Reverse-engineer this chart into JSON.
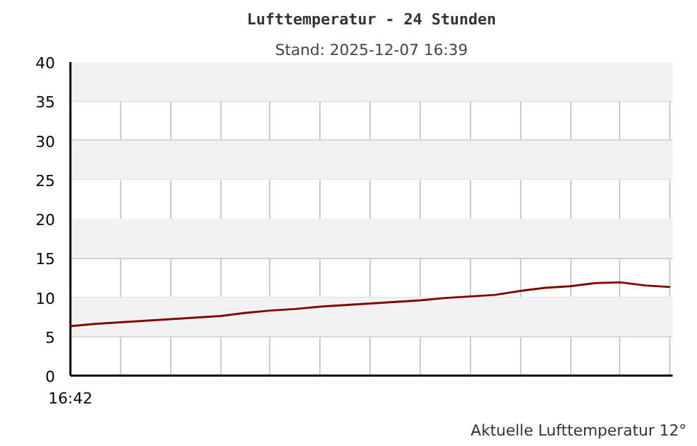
{
  "chart_data": {
    "type": "line",
    "title": "Lufttemperatur - 24 Stunden",
    "subtitle": "Stand: 2025-12-07 16:39",
    "categories": [
      "16:42",
      null,
      null,
      null,
      null,
      null,
      null,
      null,
      null,
      null,
      null,
      null,
      null,
      null,
      null,
      null,
      null,
      null,
      null,
      null,
      null,
      null,
      null,
      null,
      null
    ],
    "series": [
      {
        "color": "#800000",
        "values": [
          6.3,
          6.6,
          6.8,
          7.0,
          7.2,
          7.4,
          7.6,
          8.0,
          8.3,
          8.5,
          8.8,
          9.0,
          9.2,
          9.4,
          9.6,
          9.9,
          10.1,
          10.3,
          10.8,
          11.2,
          11.4,
          11.8,
          11.9,
          11.5,
          11.3
        ]
      }
    ],
    "ylim": [
      0,
      40
    ],
    "yticks": [
      0,
      5,
      10,
      15,
      20,
      25,
      30,
      35,
      40
    ],
    "bands": [
      {
        "axis": "y",
        "from": 5,
        "to": 10,
        "color": "#f2f2f2"
      },
      {
        "axis": "y",
        "from": 15,
        "to": 20,
        "color": "#f2f2f2"
      },
      {
        "axis": "y",
        "from": 25,
        "to": 30,
        "color": "#f2f2f2"
      },
      {
        "axis": "y",
        "from": 35,
        "to": 40,
        "color": "#f2f2f2"
      }
    ],
    "grid": true,
    "line_style": "solid",
    "annotations": [
      "Aktuelle Lufttemperatur 12°"
    ]
  }
}
